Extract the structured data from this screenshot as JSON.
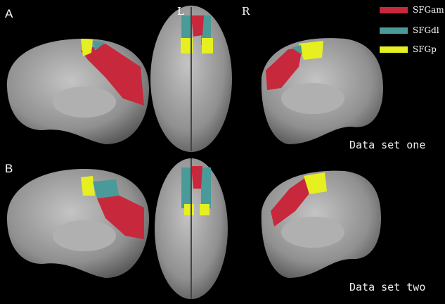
{
  "panels": {
    "a": "A",
    "b": "B"
  },
  "hemisphere": {
    "left": "L",
    "right": "R"
  },
  "datasets": {
    "one": "Data set one",
    "two": "Data set two"
  },
  "legend": [
    {
      "label": "SFGam",
      "color": "#c8283c"
    },
    {
      "label": "SFGdl",
      "color": "#4a9a9a"
    },
    {
      "label": "SFGp",
      "color": "#e6f020"
    }
  ],
  "colors": {
    "brain": "#9c9c9c",
    "background": "#000000"
  }
}
